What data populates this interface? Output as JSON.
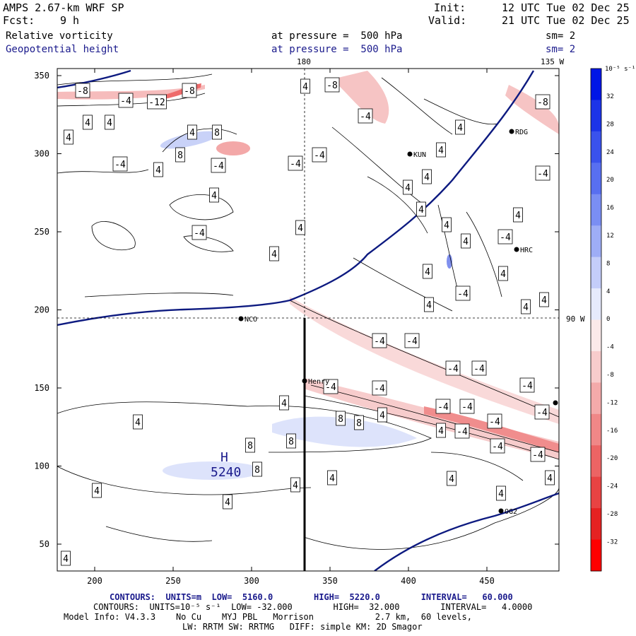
{
  "header": {
    "model_title": "AMPS 2.67-km WRF SP",
    "fcst_label": "Fcst:",
    "fcst_value": "9 h",
    "init_label": "Init:",
    "init_value": "12 UTC Tue 02 Dec 25",
    "valid_label": "Valid:",
    "valid_value": "21 UTC Tue 02 Dec 25",
    "field1_name": "Relative vorticity",
    "field1_level": "at pressure =  500 hPa",
    "field1_smooth": "sm= 2",
    "field2_name": "Geopotential height",
    "field2_level": "at pressure =  500 hPa",
    "field2_smooth": "sm= 2"
  },
  "map": {
    "meridian_180_label": "180",
    "meridian_135w_label": "135 W",
    "parallel_90w_label": "90 W",
    "x_ticks": [
      "200",
      "250",
      "300",
      "350",
      "400",
      "450"
    ],
    "y_ticks": [
      "350",
      "300",
      "250",
      "200",
      "150",
      "100",
      "50"
    ],
    "stations": [
      {
        "name": "RDG"
      },
      {
        "name": "KUN"
      },
      {
        "name": "HRC"
      },
      {
        "name": "NCO"
      },
      {
        "name": "Henry"
      },
      {
        "name": "OG2"
      }
    ],
    "height_label": "5240",
    "high_marker": "H",
    "contour_labels": [
      "-8",
      "-4",
      "-12",
      "4",
      "8"
    ],
    "colors": {
      "height_contour": "#0d1a80",
      "cross_section": "#000000"
    }
  },
  "colorbar": {
    "unit_label": "10⁻⁵ s⁻¹",
    "ticks": [
      "32",
      "28",
      "24",
      "20",
      "16",
      "12",
      "8",
      "4",
      "0",
      "-4",
      "-8",
      "-12",
      "-16",
      "-20",
      "-24",
      "-28",
      "-32"
    ],
    "colors": [
      "#0016e6",
      "#1c34e8",
      "#3a52ec",
      "#586ff0",
      "#7a8ef3",
      "#9eadf6",
      "#c4cdf9",
      "#e6eafc",
      "#fbe9e9",
      "#f8cccc",
      "#f4aaaa",
      "#f08787",
      "#ec6464",
      "#e84343",
      "#e52222",
      "#ff0000"
    ]
  },
  "footer": {
    "contours1": "CONTOURS:  UNITS=m  LOW=  5160.0        HIGH=  5220.0        INTERVAL=   60.000",
    "contours2": "CONTOURS:  UNITS=10⁻⁵ s⁻¹  LOW= -32.000        HIGH=  32.000        INTERVAL=   4.0000",
    "model_info": "Model Info: V4.3.3    No Cu    MYJ PBL   Morrison            2.7 km,  60 levels,",
    "physics": "LW: RRTM SW: RRTMG   DIFF: simple KM: 2D Smagor"
  }
}
